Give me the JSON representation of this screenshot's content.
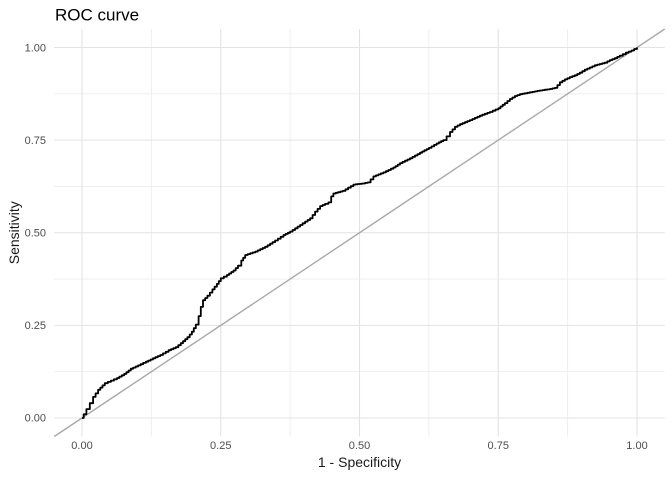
{
  "title": "ROC curve",
  "axes": {
    "x_label": "1 - Specificity",
    "y_label": "Sensitivity",
    "x_ticks": [
      "0.00",
      "0.25",
      "0.50",
      "0.75",
      "1.00"
    ],
    "y_ticks": [
      "0.00",
      "0.25",
      "0.50",
      "0.75",
      "1.00"
    ]
  },
  "colors": {
    "background": "#ffffff",
    "grid_major": "#e3e3e3",
    "grid_minor": "#ededed",
    "reference_line": "#a9a9a9",
    "roc_line": "#000000",
    "tick_text": "#4d4d4d",
    "title_text": "#000000"
  },
  "chart_data": {
    "type": "line",
    "title": "ROC curve",
    "xlabel": "1 - Specificity",
    "ylabel": "Sensitivity",
    "xlim": [
      0,
      1
    ],
    "ylim": [
      0,
      1
    ],
    "x_tick_values": [
      0,
      0.25,
      0.5,
      0.75,
      1
    ],
    "y_tick_values": [
      0,
      0.25,
      0.5,
      0.75,
      1
    ],
    "x_minor_breaks": [
      0.125,
      0.375,
      0.625,
      0.875
    ],
    "y_minor_breaks": [
      0.125,
      0.375,
      0.625,
      0.875
    ],
    "grid": "major+minor",
    "legend": "none",
    "series": [
      {
        "name": "ROC curve",
        "style": "step",
        "color": "#000000",
        "points": [
          [
            0.0,
            0.0
          ],
          [
            0.003,
            0.01
          ],
          [
            0.008,
            0.024
          ],
          [
            0.014,
            0.04
          ],
          [
            0.02,
            0.057
          ],
          [
            0.029,
            0.076
          ],
          [
            0.041,
            0.094
          ],
          [
            0.052,
            0.101
          ],
          [
            0.063,
            0.108
          ],
          [
            0.076,
            0.119
          ],
          [
            0.088,
            0.133
          ],
          [
            0.101,
            0.142
          ],
          [
            0.115,
            0.152
          ],
          [
            0.128,
            0.161
          ],
          [
            0.141,
            0.17
          ],
          [
            0.156,
            0.183
          ],
          [
            0.169,
            0.191
          ],
          [
            0.178,
            0.202
          ],
          [
            0.19,
            0.218
          ],
          [
            0.198,
            0.233
          ],
          [
            0.205,
            0.252
          ],
          [
            0.21,
            0.275
          ],
          [
            0.214,
            0.3
          ],
          [
            0.218,
            0.318
          ],
          [
            0.226,
            0.33
          ],
          [
            0.235,
            0.347
          ],
          [
            0.243,
            0.362
          ],
          [
            0.25,
            0.377
          ],
          [
            0.261,
            0.386
          ],
          [
            0.273,
            0.398
          ],
          [
            0.281,
            0.411
          ],
          [
            0.287,
            0.425
          ],
          [
            0.294,
            0.44
          ],
          [
            0.312,
            0.449
          ],
          [
            0.33,
            0.462
          ],
          [
            0.348,
            0.479
          ],
          [
            0.363,
            0.494
          ],
          [
            0.375,
            0.503
          ],
          [
            0.393,
            0.521
          ],
          [
            0.411,
            0.539
          ],
          [
            0.42,
            0.557
          ],
          [
            0.429,
            0.572
          ],
          [
            0.438,
            0.578
          ],
          [
            0.444,
            0.582
          ],
          [
            0.449,
            0.598
          ],
          [
            0.453,
            0.606
          ],
          [
            0.47,
            0.613
          ],
          [
            0.489,
            0.63
          ],
          [
            0.505,
            0.633
          ],
          [
            0.515,
            0.636
          ],
          [
            0.525,
            0.652
          ],
          [
            0.543,
            0.663
          ],
          [
            0.561,
            0.676
          ],
          [
            0.573,
            0.688
          ],
          [
            0.591,
            0.701
          ],
          [
            0.609,
            0.716
          ],
          [
            0.625,
            0.729
          ],
          [
            0.639,
            0.741
          ],
          [
            0.651,
            0.75
          ],
          [
            0.657,
            0.76
          ],
          [
            0.663,
            0.772
          ],
          [
            0.672,
            0.786
          ],
          [
            0.681,
            0.793
          ],
          [
            0.699,
            0.804
          ],
          [
            0.717,
            0.816
          ],
          [
            0.735,
            0.826
          ],
          [
            0.75,
            0.836
          ],
          [
            0.762,
            0.85
          ],
          [
            0.771,
            0.861
          ],
          [
            0.78,
            0.869
          ],
          [
            0.789,
            0.874
          ],
          [
            0.807,
            0.879
          ],
          [
            0.825,
            0.884
          ],
          [
            0.843,
            0.888
          ],
          [
            0.852,
            0.891
          ],
          [
            0.861,
            0.906
          ],
          [
            0.87,
            0.914
          ],
          [
            0.879,
            0.92
          ],
          [
            0.888,
            0.925
          ],
          [
            0.897,
            0.932
          ],
          [
            0.906,
            0.94
          ],
          [
            0.915,
            0.946
          ],
          [
            0.924,
            0.952
          ],
          [
            0.942,
            0.959
          ],
          [
            0.951,
            0.966
          ],
          [
            0.96,
            0.971
          ],
          [
            0.969,
            0.978
          ],
          [
            0.98,
            0.986
          ],
          [
            0.99,
            0.992
          ],
          [
            1.0,
            1.0
          ]
        ]
      },
      {
        "name": "chance diagonal",
        "style": "straight",
        "color": "#a9a9a9",
        "points": [
          [
            0,
            0
          ],
          [
            1,
            1
          ]
        ]
      }
    ]
  }
}
